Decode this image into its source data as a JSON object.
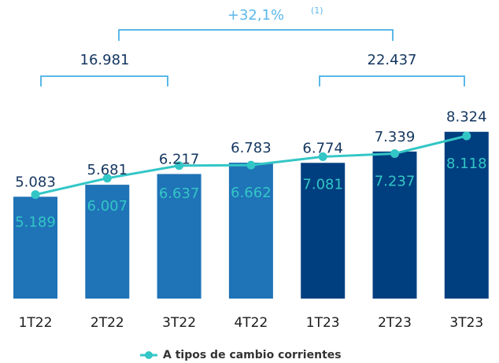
{
  "chart_data": {
    "type": "bar",
    "categories": [
      "1T22",
      "2T22",
      "3T22",
      "4T22",
      "1T23",
      "2T23",
      "3T23"
    ],
    "series": [
      {
        "colors": [
          "#1f73b7",
          "#1f73b7",
          "#1f73b7",
          "#1f73b7",
          "#003f7f",
          "#003f7f",
          "#003f7f"
        ],
        "values": [
          5083,
          5681,
          6217,
          6783,
          6774,
          7339,
          8324
        ],
        "value_labels": [
          "5.083",
          "5.681",
          "6.217",
          "6.783",
          "6.774",
          "7.339",
          "8.324"
        ]
      },
      {
        "name": "A tipos de cambio corrientes",
        "type": "line",
        "color": "#33c6c6",
        "values": [
          5189,
          6007,
          6637,
          6662,
          7081,
          7237,
          8118
        ],
        "value_labels": [
          "5.189",
          "6.007",
          "6.637",
          "6.662",
          "7.081",
          "7.237",
          "8.118"
        ]
      }
    ],
    "annotations": [
      "16.981",
      "22.437",
      "+32,1%",
      "(1)"
    ]
  }
}
